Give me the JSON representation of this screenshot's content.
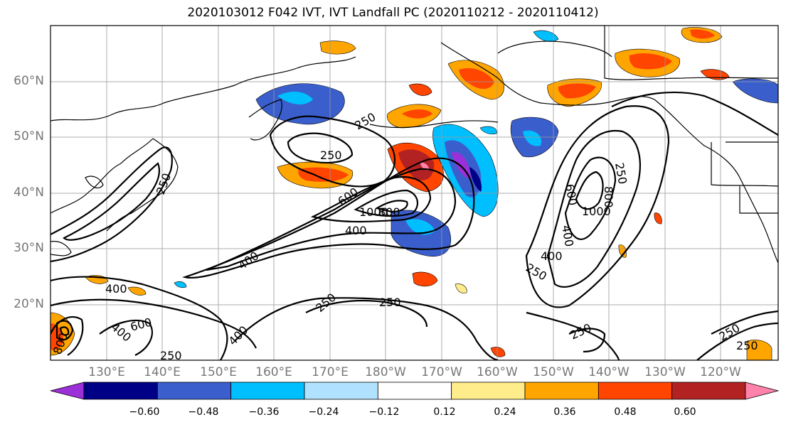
{
  "title": "2020103012 F042 IVT, IVT Landfall PC (2020110212 - 2020110412)",
  "lat_labels": [
    "60°N",
    "50°N",
    "40°N",
    "30°N",
    "20°N"
  ],
  "lon_labels": [
    "130°E",
    "140°E",
    "150°E",
    "160°E",
    "170°E",
    "180°W",
    "170°W",
    "160°W",
    "150°W",
    "140°W",
    "130°W",
    "120°W"
  ],
  "colorbar": {
    "colors": [
      "#9b30d9",
      "#000087",
      "#3a5fcd",
      "#00bfff",
      "#b0e2ff",
      "#ffffff",
      "#ffec8b",
      "#ffa500",
      "#ff4500",
      "#b22222",
      "#ff82ab"
    ],
    "ticks": [
      "−0.60",
      "−0.48",
      "−0.36",
      "−0.24",
      "−0.12",
      "0.12",
      "0.24",
      "0.36",
      "0.48",
      "0.60"
    ]
  },
  "contour_labels": [
    "250",
    "250",
    "250",
    "250",
    "250",
    "250",
    "250",
    "250",
    "250",
    "400",
    "400",
    "400",
    "400",
    "400",
    "400",
    "600",
    "600",
    "600",
    "800",
    "800",
    "1000",
    "1000",
    "400",
    "800",
    "250",
    "250"
  ]
}
